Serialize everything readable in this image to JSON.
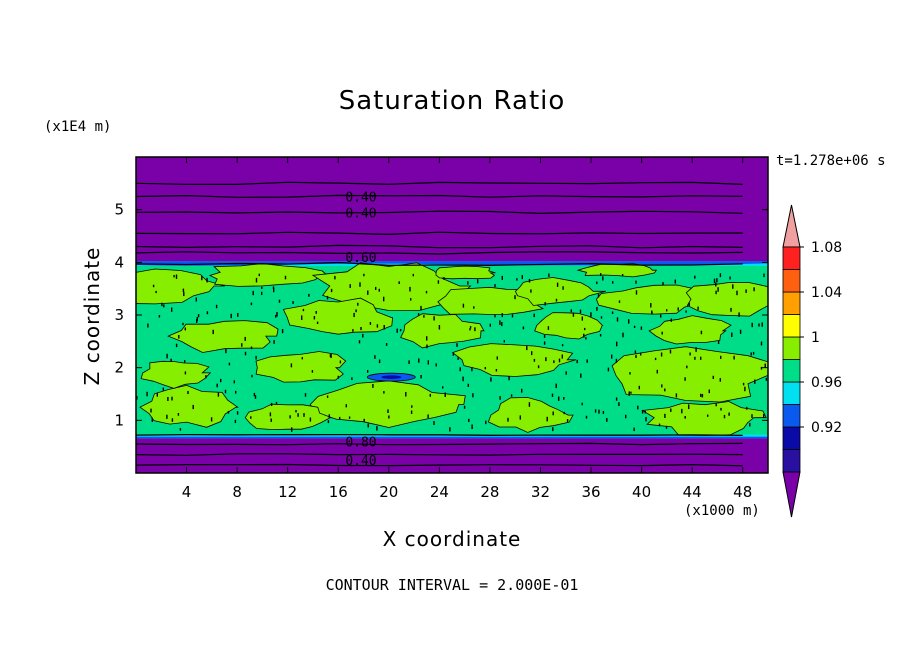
{
  "chart_data": {
    "type": "heatmap",
    "title": "Saturation Ratio",
    "xlabel": "X coordinate",
    "ylabel": "Z coordinate",
    "x_unit": "(x1000 m)",
    "y_unit": "(x1E4 m)",
    "time_label": "t=1.278e+06 s",
    "contour_interval": "CONTOUR INTERVAL = 2.000E-01",
    "xlim": [
      0,
      50
    ],
    "ylim": [
      0,
      6
    ],
    "x_ticks": [
      4,
      8,
      12,
      16,
      20,
      24,
      28,
      32,
      36,
      40,
      44,
      48
    ],
    "y_ticks": [
      1,
      2,
      3,
      4,
      5
    ],
    "colorbar": {
      "levels": [
        0.92,
        0.96,
        1,
        1.04,
        1.08
      ],
      "tick_labels": [
        "0.92",
        "0.96",
        "1",
        "1.04",
        "1.08"
      ],
      "colors": [
        "#7a00a8",
        "#2a10a0",
        "#0a0aa6",
        "#0a5af0",
        "#00e0f0",
        "#00dd88",
        "#88ee00",
        "#ffff00",
        "#ffa000",
        "#ff6010",
        "#ff2020",
        "#f0a0a0"
      ]
    },
    "field_bands": [
      {
        "z_range": [
          0,
          0.7
        ],
        "value": "< 0.92"
      },
      {
        "z_range": [
          0.7,
          3.9
        ],
        "value": "0.98 - 1.02"
      },
      {
        "z_range": [
          3.9,
          4.0
        ],
        "value": "0.94 - 0.98"
      },
      {
        "z_range": [
          4.0,
          6.0
        ],
        "value": "< 0.92"
      }
    ],
    "contour_labels": [
      {
        "text": "0.40",
        "x": 17.8,
        "z": 5.25
      },
      {
        "text": "0.40",
        "x": 17.8,
        "z": 4.95
      },
      {
        "text": "0.60",
        "x": 17.8,
        "z": 4.1
      },
      {
        "text": "0.80",
        "x": 17.8,
        "z": 0.6
      },
      {
        "text": "0.40",
        "x": 17.8,
        "z": 0.25
      }
    ],
    "upper_contours_z": [
      5.5,
      5.25,
      4.95,
      4.55,
      4.3,
      4.18
    ],
    "lower_contours_z": [
      0.55,
      0.35,
      0.15
    ]
  }
}
